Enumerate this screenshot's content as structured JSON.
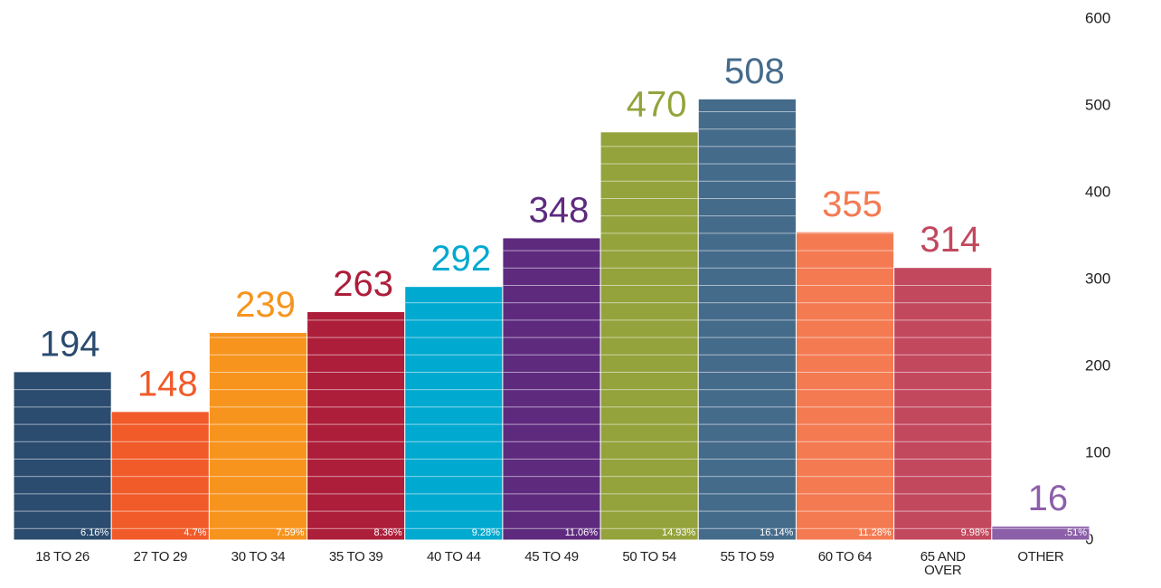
{
  "chart_data": {
    "type": "bar",
    "categories": [
      "18 TO 26",
      "27 TO 29",
      "30 TO 34",
      "35 TO 39",
      "40 TO 44",
      "45 TO 49",
      "50 TO 54",
      "55 TO 59",
      "60 TO 64",
      "65 AND OVER",
      "OTHER"
    ],
    "values": [
      194,
      148,
      239,
      263,
      292,
      348,
      470,
      508,
      355,
      314,
      16
    ],
    "share_labels": [
      "6.16%",
      "4.7%",
      "7.59%",
      "8.36%",
      "9.28%",
      "11.06%",
      "14.93%",
      "16.14%",
      "11.28%",
      "9.98%",
      ".51%"
    ],
    "colors": [
      "#2b4b6f",
      "#f15a29",
      "#f7941e",
      "#ad1e3a",
      "#00a9d0",
      "#5e2a7e",
      "#94a33b",
      "#456b8b",
      "#f47a52",
      "#c2485e",
      "#8c5fa9"
    ],
    "ylim": [
      0,
      600
    ],
    "yticks": [
      0,
      100,
      200,
      300,
      400,
      500,
      600
    ]
  }
}
